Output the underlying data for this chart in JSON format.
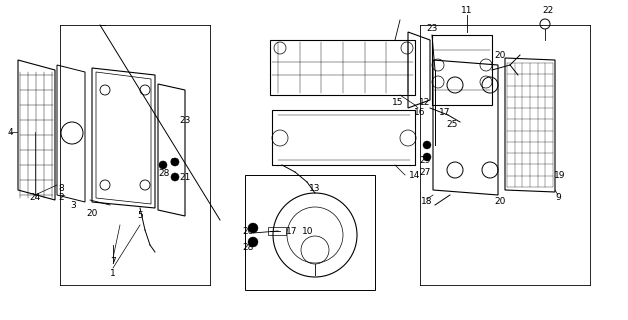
{
  "bg_color": "#ffffff",
  "line_color": "#000000",
  "fig_width": 6.28,
  "fig_height": 3.2
}
